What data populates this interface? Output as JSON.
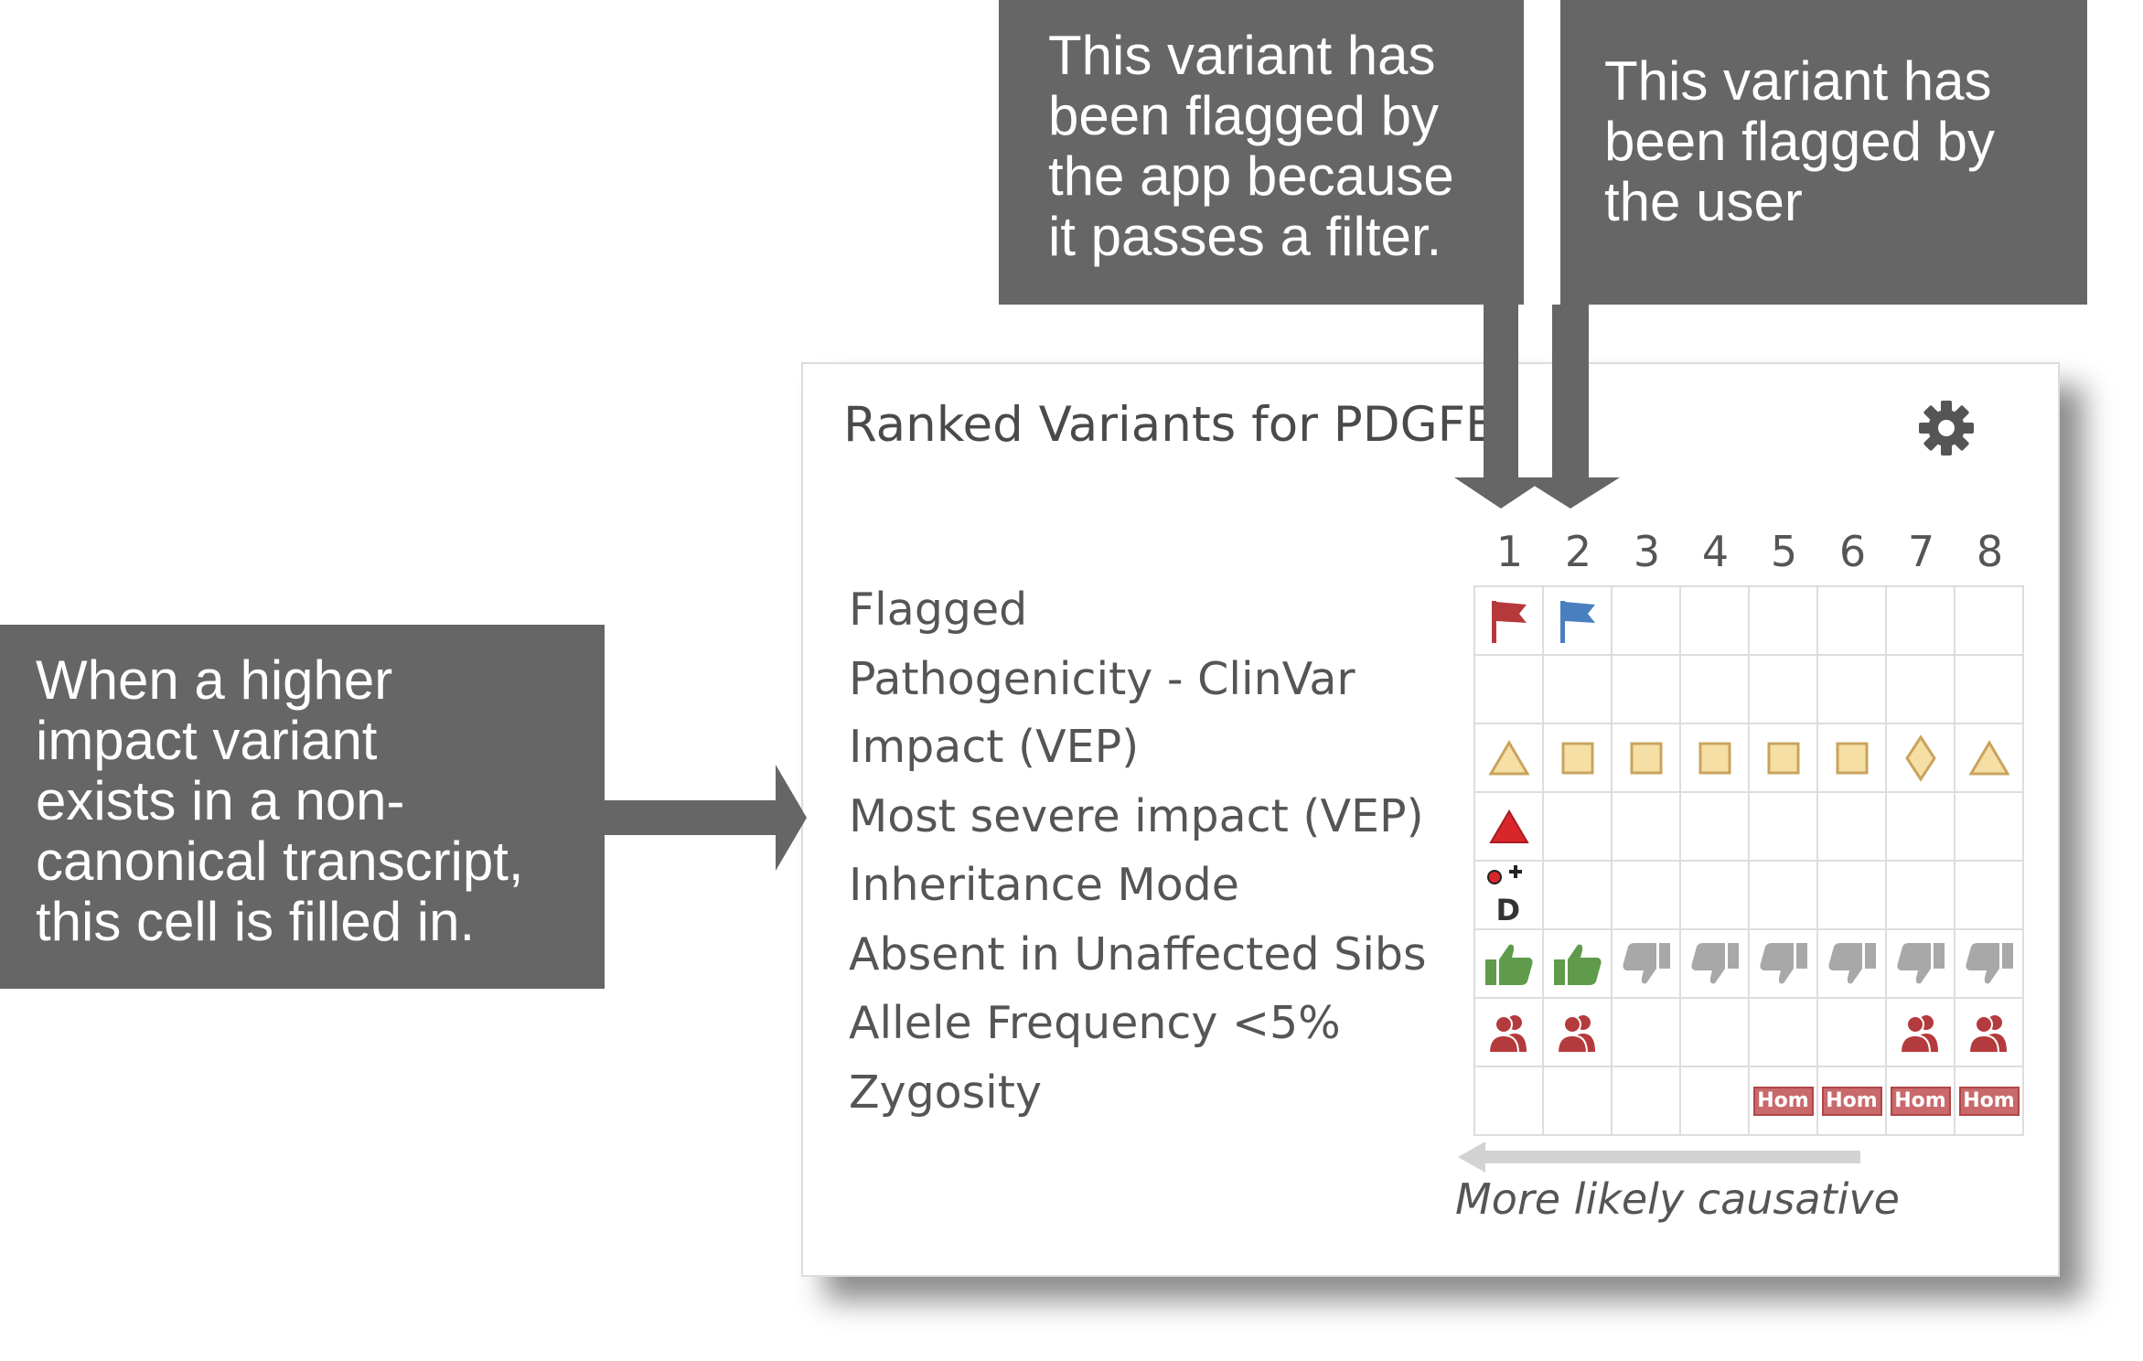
{
  "callouts": {
    "app_flag": {
      "lines": [
        "This variant has",
        "been flagged by",
        "the app because",
        "it passes a filter."
      ]
    },
    "user_flag": {
      "lines": [
        "This variant has",
        "been flagged by",
        "the user"
      ]
    },
    "impact": {
      "lines": [
        "When a higher",
        "impact variant",
        "exists in a non-",
        "canonical transcript,",
        "this cell is filled in."
      ]
    }
  },
  "card": {
    "title": "Ranked Variants for PDGFB",
    "settings_icon": "gear-icon",
    "columns": [
      "1",
      "2",
      "3",
      "4",
      "5",
      "6",
      "7",
      "8"
    ],
    "rows": [
      {
        "label": "Flagged",
        "cells": [
          "flag-red",
          "flag-blue",
          "",
          "",
          "",
          "",
          "",
          ""
        ]
      },
      {
        "label": "Pathogenicity - ClinVar",
        "cells": [
          "",
          "",
          "",
          "",
          "",
          "",
          "",
          ""
        ]
      },
      {
        "label": "Impact (VEP)",
        "cells": [
          "triangle",
          "square",
          "square",
          "square",
          "square",
          "square",
          "diamond",
          "triangle"
        ]
      },
      {
        "label": "Most severe impact (VEP)",
        "cells": [
          "triangle-red",
          "",
          "",
          "",
          "",
          "",
          "",
          ""
        ]
      },
      {
        "label": "Inheritance Mode",
        "cells": [
          "inheritance-denovo",
          "",
          "",
          "",
          "",
          "",
          "",
          ""
        ]
      },
      {
        "label": "Absent in Unaffected Sibs",
        "cells": [
          "thumbs-up",
          "thumbs-up",
          "thumbs-down",
          "thumbs-down",
          "thumbs-down",
          "thumbs-down",
          "thumbs-down",
          "thumbs-down"
        ]
      },
      {
        "label": "Allele Frequency <5%",
        "cells": [
          "people",
          "people",
          "",
          "",
          "",
          "",
          "people",
          "people"
        ]
      },
      {
        "label": "Zygosity",
        "cells": [
          "",
          "",
          "",
          "",
          "Hom",
          "Hom",
          "Hom",
          "Hom"
        ]
      }
    ],
    "footer": "More likely causative"
  },
  "colors": {
    "callout_bg": "#666666",
    "flag_red": "#b5393b",
    "flag_blue": "#4a7fbf",
    "impact_fill": "#f6dfa5",
    "impact_stroke": "#c9a45e",
    "severe_red": "#d9262b",
    "thumbs_up": "#5f9b4a",
    "thumbs_down": "#a8a8a8",
    "people_red": "#b43b3d",
    "hom_bg": "#c9696b"
  }
}
